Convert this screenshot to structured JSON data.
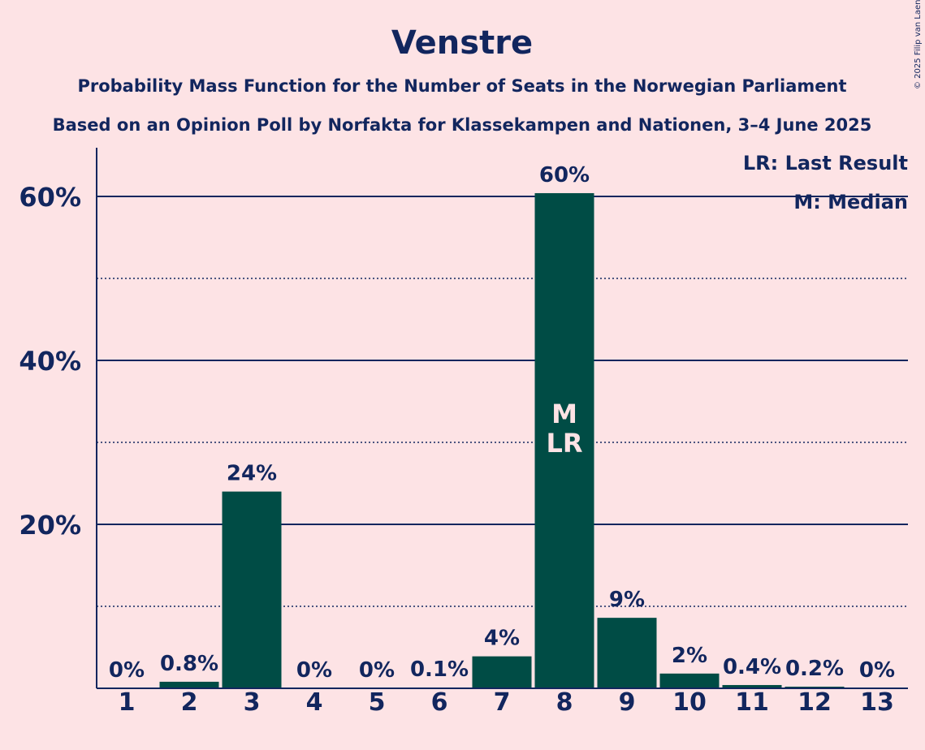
{
  "title": "Venstre",
  "subtitle1": "Probability Mass Function for the Number of Seats in the Norwegian Parliament",
  "subtitle2": "Based on an Opinion Poll by Norfakta for Klassekampen and Nationen, 3–4 June 2025",
  "copyright": "© 2025 Filip van Laenen",
  "legend": {
    "lr": "LR: Last Result",
    "m": "M: Median"
  },
  "bar_marker_lines": [
    "M",
    "LR"
  ],
  "colors": {
    "background": "#fde3e5",
    "bar": "#004c45",
    "text": "#12265e"
  },
  "chart_data": {
    "type": "bar",
    "categories": [
      "1",
      "2",
      "3",
      "4",
      "5",
      "6",
      "7",
      "8",
      "9",
      "10",
      "11",
      "12",
      "13"
    ],
    "values": [
      0,
      0.8,
      24,
      0,
      0,
      0.1,
      3.9,
      60.4,
      8.6,
      1.8,
      0.4,
      0.2,
      0
    ],
    "data_labels": [
      "0%",
      "0.8%",
      "24%",
      "0%",
      "0%",
      "0.1%",
      "4%",
      "60%",
      "9%",
      "2%",
      "0.4%",
      "0.2%",
      "0%"
    ],
    "yticks": [
      20,
      40,
      60
    ],
    "ytick_labels": [
      "20%",
      "40%",
      "60%"
    ],
    "minor_gridlines": [
      10,
      30,
      50
    ],
    "ylim": [
      0,
      66
    ],
    "median_seats": "8",
    "last_result_seats": "8",
    "legend_position": "top-right"
  }
}
